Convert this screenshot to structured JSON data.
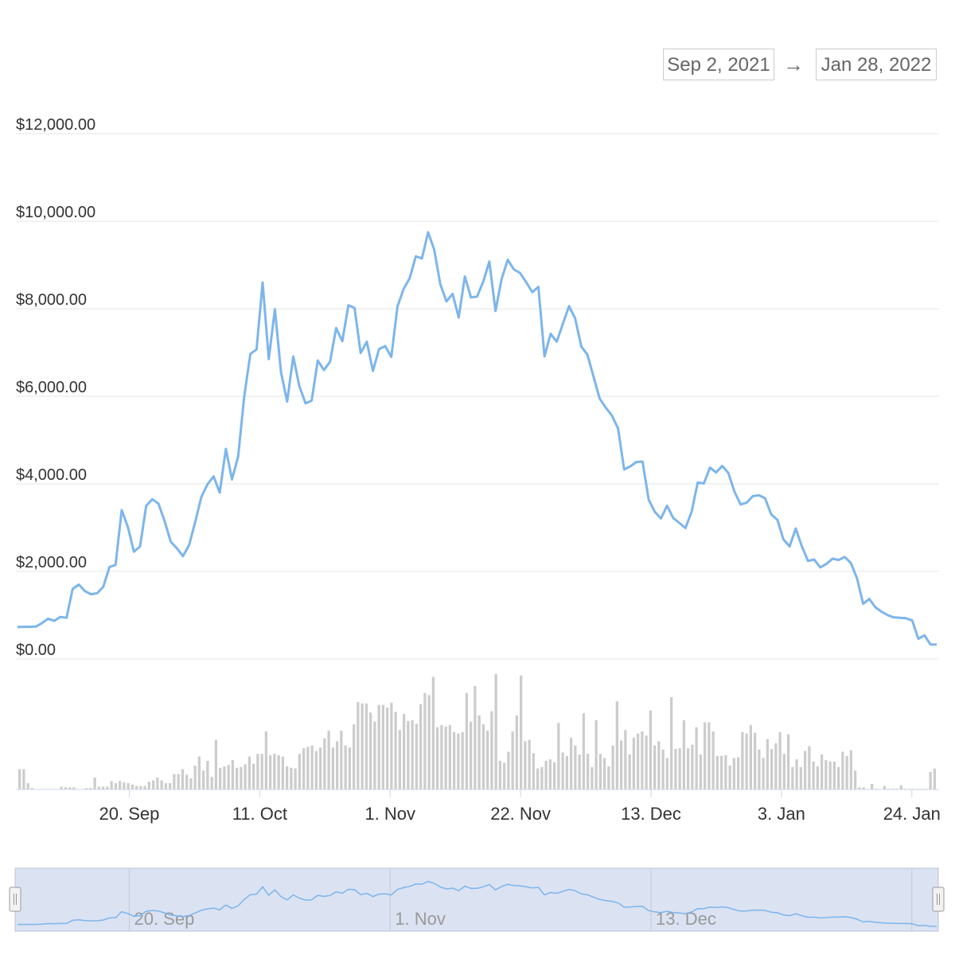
{
  "range_selector": {
    "from": "Sep 2, 2021",
    "arrow": "→",
    "to": "Jan 28, 2022"
  },
  "colors": {
    "line": "#7cb5ec",
    "volume": "#cccccc",
    "grid": "#e6e6e6",
    "navigator_fill": "#dbe2f2"
  },
  "chart_data": {
    "type": "line",
    "title": "",
    "xlabel": "",
    "ylabel": "",
    "ylim": [
      0,
      12000
    ],
    "grid": true,
    "y_ticks": [
      "$12,000.00",
      "$10,000.00",
      "$8,000.00",
      "$6,000.00",
      "$4,000.00",
      "$2,000.00",
      "$0.00"
    ],
    "y_tick_values": [
      12000,
      10000,
      8000,
      6000,
      4000,
      2000,
      0
    ],
    "x_ticks": [
      "20. Sep",
      "11. Oct",
      "1. Nov",
      "22. Nov",
      "13. Dec",
      "3. Jan",
      "24. Jan"
    ],
    "x_tick_dates": [
      "2021-09-20",
      "2021-10-11",
      "2021-11-01",
      "2021-11-22",
      "2021-12-13",
      "2022-01-03",
      "2022-01-24"
    ],
    "x_start": "2021-09-02",
    "x_end": "2022-01-28",
    "series": [
      {
        "values": [
          730,
          735,
          735,
          740,
          820,
          920,
          870,
          960,
          940,
          1600,
          1700,
          1550,
          1480,
          1500,
          1650,
          2100,
          2150,
          3400,
          3020,
          2450,
          2570,
          3500,
          3650,
          3550,
          3150,
          2680,
          2530,
          2350,
          2600,
          3130,
          3700,
          3990,
          4170,
          3800,
          4800,
          4100,
          4620,
          6000,
          6970,
          7070,
          8600,
          6850,
          7990,
          6550,
          5880,
          6910,
          6230,
          5840,
          5900,
          6820,
          6600,
          6790,
          7560,
          7260,
          8080,
          8020,
          6990,
          7250,
          6580,
          7080,
          7150,
          6900,
          8050,
          8450,
          8700,
          9200,
          9150,
          9750,
          9350,
          8560,
          8170,
          8340,
          7800,
          8740,
          8260,
          8280,
          8620,
          9080,
          7950,
          8680,
          9120,
          8900,
          8820,
          8610,
          8380,
          8500,
          6910,
          7430,
          7250,
          7660,
          8060,
          7780,
          7140,
          6950,
          6450,
          5950,
          5740,
          5560,
          5270,
          4330,
          4400,
          4500,
          4510,
          3640,
          3360,
          3210,
          3500,
          3220,
          3110,
          2990,
          3360,
          4030,
          4010,
          4370,
          4260,
          4410,
          4250,
          3820,
          3530,
          3570,
          3720,
          3740,
          3670,
          3300,
          3180,
          2730,
          2570,
          2980,
          2570,
          2240,
          2270,
          2090,
          2170,
          2290,
          2260,
          2330,
          2190,
          1840,
          1260,
          1370,
          1180,
          1080,
          1000,
          950,
          940,
          930,
          880,
          460,
          540,
          330,
          330
        ]
      }
    ],
    "volume": [
      29,
      29,
      9,
      2,
      0,
      0,
      0,
      0,
      0,
      0,
      4,
      3,
      3,
      3,
      0,
      0,
      2,
      2,
      17,
      4,
      4,
      4,
      12,
      9,
      12,
      10,
      9,
      7,
      5,
      5,
      5,
      11,
      13,
      17,
      13,
      9,
      9,
      22,
      22,
      29,
      21,
      16,
      34,
      47,
      27,
      41,
      18,
      71,
      31,
      33,
      35,
      42,
      31,
      32,
      36,
      47,
      37,
      51,
      51,
      83,
      49,
      51,
      49,
      47,
      33,
      31,
      30,
      51,
      59,
      61,
      63,
      55,
      60,
      73,
      84,
      60,
      69,
      84,
      63,
      60,
      93,
      125,
      123,
      123,
      110,
      97,
      121,
      121,
      117,
      124,
      111,
      85,
      108,
      98,
      99,
      94,
      122,
      138,
      135,
      161,
      89,
      92,
      90,
      92,
      82,
      80,
      82,
      138,
      97,
      148,
      106,
      93,
      84,
      112,
      165,
      41,
      38,
      54,
      83,
      106,
      163,
      69,
      71,
      52,
      30,
      32,
      41,
      43,
      39,
      95,
      53,
      48,
      74,
      63,
      50,
      109,
      51,
      32,
      99,
      51,
      45,
      33,
      63,
      126,
      70,
      85,
      50,
      74,
      80,
      83,
      77,
      113,
      63,
      69,
      57,
      45,
      132,
      58,
      59,
      99,
      59,
      64,
      89,
      50,
      96,
      96,
      83,
      48,
      48,
      49,
      34,
      45,
      46,
      82,
      80,
      92,
      81,
      57,
      45,
      72,
      58,
      66,
      82,
      51,
      79,
      32,
      43,
      32,
      55,
      62,
      40,
      33,
      50,
      42,
      40,
      40,
      32,
      54,
      48,
      56,
      27,
      3,
      3,
      0,
      8,
      1,
      0,
      5,
      1,
      1,
      1,
      6,
      1,
      1,
      1,
      1,
      1,
      1,
      25,
      30
    ]
  },
  "navigator": {
    "labels": [
      "20. Sep",
      "1. Nov",
      "13. Dec"
    ],
    "label_dates": [
      "2021-09-20",
      "2021-11-01",
      "2021-12-13"
    ],
    "handle_left_symbol": "||",
    "handle_right_symbol": "||"
  }
}
